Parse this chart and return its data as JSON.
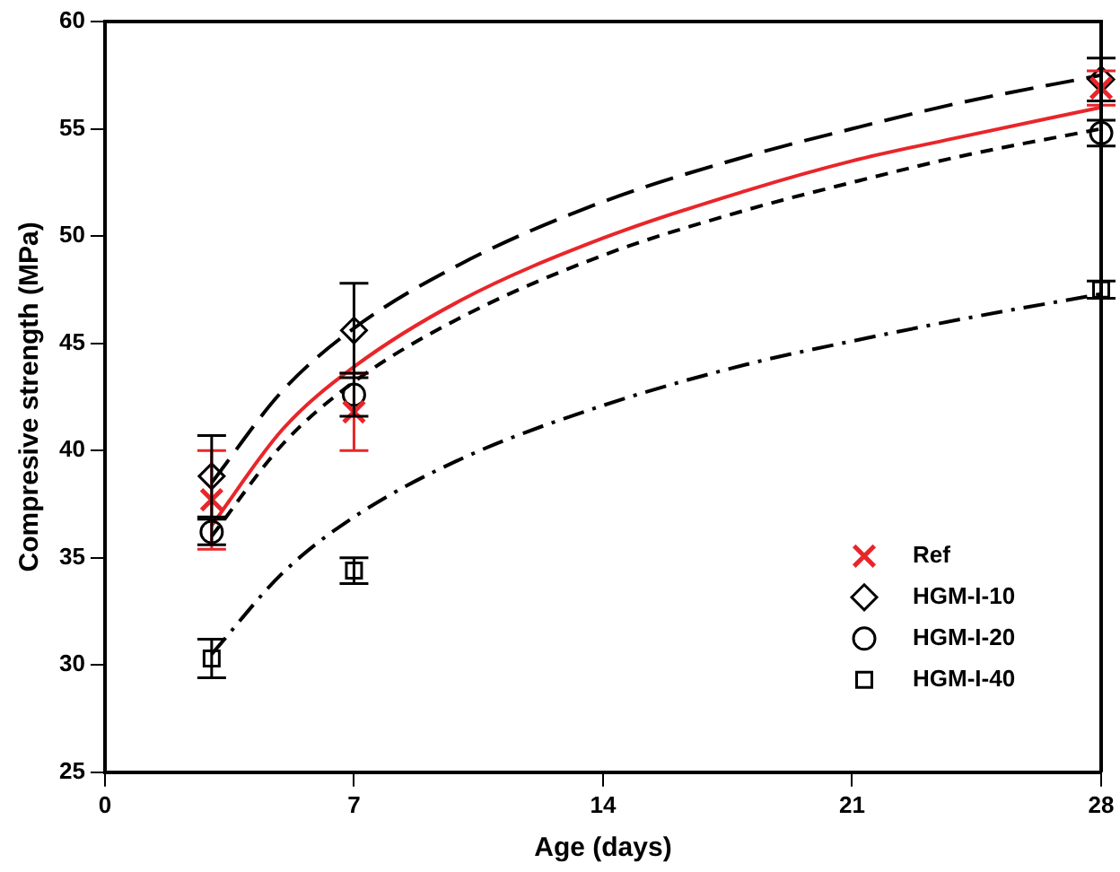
{
  "chart_data": {
    "type": "scatter",
    "xlabel": "Age (days)",
    "ylabel": "Compresive strength (MPa)",
    "xlim": [
      0,
      28
    ],
    "xticks": [
      0,
      7,
      14,
      21,
      28
    ],
    "ylim": [
      25,
      60
    ],
    "yticks": [
      25,
      30,
      35,
      40,
      45,
      50,
      55,
      60
    ],
    "grid": false,
    "legend": "bottom right",
    "x": [
      3,
      7,
      28
    ],
    "series": [
      {
        "name": "Ref",
        "marker": "cross",
        "color": "#e8262a",
        "values": [
          37.7,
          41.8,
          56.9
        ],
        "errors": [
          2.3,
          1.8,
          0.8
        ]
      },
      {
        "name": "HGM-I-10",
        "marker": "diamond",
        "color": "#000000",
        "values": [
          38.8,
          45.6,
          57.3
        ],
        "errors": [
          1.9,
          2.2,
          1.0
        ]
      },
      {
        "name": "HGM-I-20",
        "marker": "circle",
        "color": "#000000",
        "values": [
          36.2,
          42.6,
          54.8
        ],
        "errors": [
          0.6,
          1.0,
          0.6
        ]
      },
      {
        "name": "HGM-I-40",
        "marker": "square",
        "color": "#000000",
        "values": [
          30.3,
          34.4,
          47.5
        ],
        "errors": [
          0.9,
          0.6,
          0.4
        ]
      },
      {
        "type": "line",
        "line_style": "solid",
        "color": "#e8262a",
        "x": [
          3,
          5,
          7,
          10,
          14,
          18,
          21,
          24,
          28
        ],
        "values": [
          36.5,
          41.0,
          43.9,
          47.0,
          49.9,
          52.1,
          53.5,
          54.6,
          56.0
        ]
      },
      {
        "type": "line",
        "line_style": "longdash",
        "color": "#000000",
        "x": [
          3,
          5,
          7,
          10,
          14,
          18,
          21,
          24,
          28
        ],
        "values": [
          38.5,
          42.8,
          45.7,
          48.7,
          51.6,
          53.7,
          55.0,
          56.2,
          57.5
        ]
      },
      {
        "type": "line",
        "line_style": "dashed",
        "color": "#000000",
        "x": [
          3,
          5,
          7,
          10,
          14,
          18,
          21,
          24,
          28
        ],
        "values": [
          36.0,
          40.3,
          43.2,
          46.2,
          49.1,
          51.2,
          52.5,
          53.7,
          55.0
        ]
      },
      {
        "type": "line",
        "line_style": "dashdot",
        "color": "#000000",
        "x": [
          3,
          5,
          7,
          10,
          14,
          18,
          21,
          24,
          28
        ],
        "values": [
          30.5,
          34.3,
          36.9,
          39.6,
          42.1,
          44.0,
          45.1,
          46.1,
          47.3
        ]
      }
    ]
  }
}
